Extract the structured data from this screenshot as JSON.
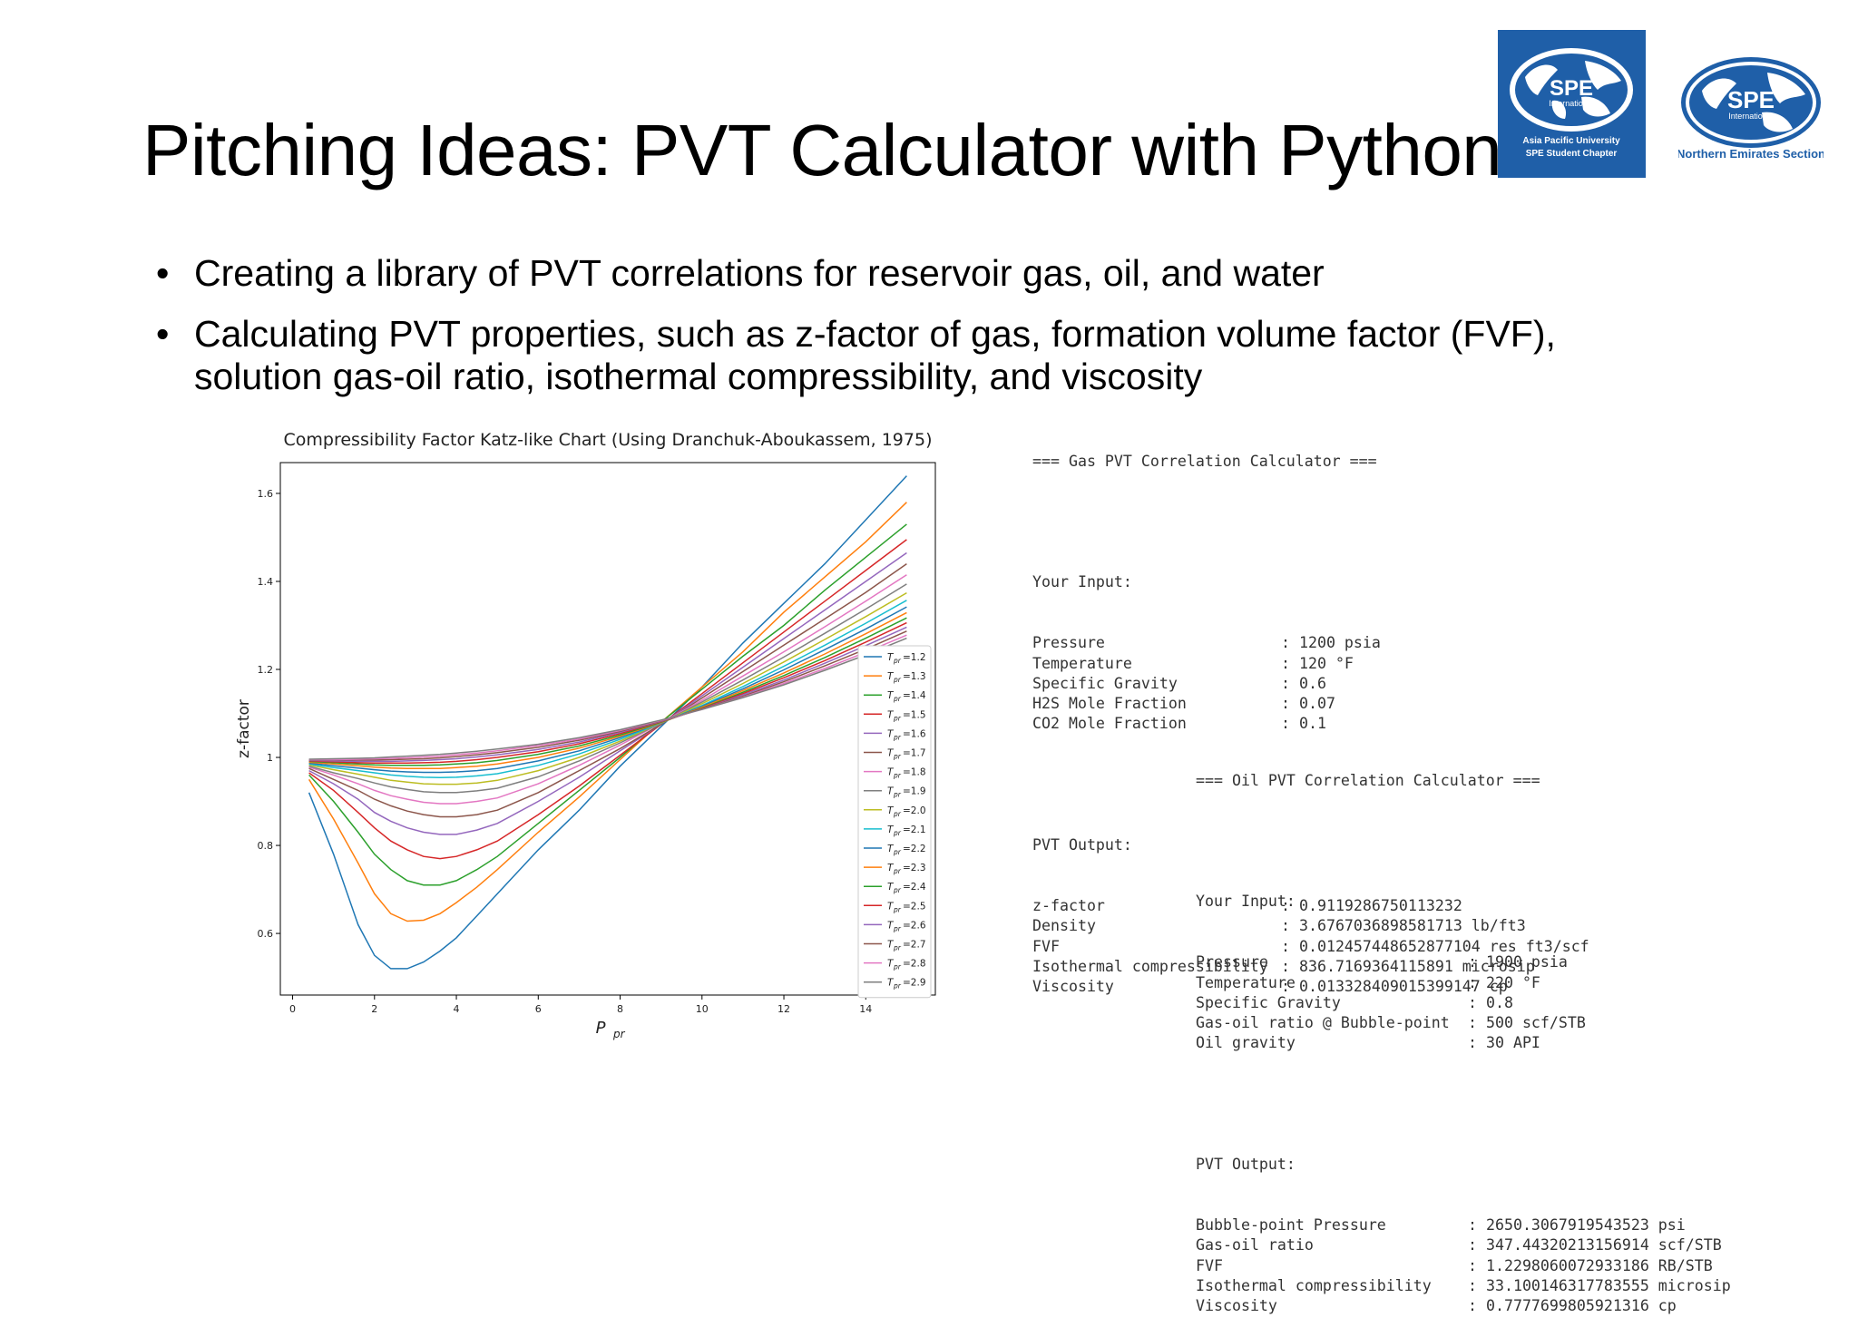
{
  "slide": {
    "title": "Pitching Ideas: PVT Calculator with Python",
    "bullets": [
      {
        "text": "Creating a library of PVT correlations for reservoir gas, oil, and water"
      },
      {
        "text": "Calculating PVT properties, such as z-factor of gas, formation volume factor (FVF), solution gas-oil ratio, isothermal compressibility, and viscosity"
      }
    ],
    "bullet_glyph": "•"
  },
  "logos": {
    "left": {
      "name": "SPE",
      "sub1": "International",
      "line1": "Asia Pacific University",
      "line2": "SPE Student Chapter",
      "bg": "#1f5fa8"
    },
    "right": {
      "name": "SPE",
      "sub1": "International",
      "caption": "Northern Emirates Section",
      "color": "#1f5fa8"
    }
  },
  "chart_data": {
    "type": "line",
    "title": "Compressibility Factor Katz-like Chart (Using Dranchuk-Aboukassem, 1975)",
    "xlabel_main": "P",
    "xlabel_sub": "pr",
    "ylabel": "z-factor",
    "xlim": [
      -0.3,
      15.7
    ],
    "ylim": [
      0.46,
      1.67
    ],
    "xticks": [
      0,
      2,
      4,
      6,
      8,
      10,
      12,
      14
    ],
    "yticks": [
      0.6,
      0.8,
      1.0,
      1.2,
      1.4,
      1.6
    ],
    "x": [
      0.4,
      1.0,
      1.6,
      2.0,
      2.4,
      2.8,
      3.2,
      3.6,
      4.0,
      4.5,
      5.0,
      6.0,
      7.0,
      8.0,
      9.0,
      10.0,
      11.0,
      12.0,
      13.0,
      14.0,
      15.0
    ],
    "legend_position": "lower-right",
    "series": [
      {
        "name": "T",
        "sub": "pr",
        "label": "=1.2",
        "color": "#1f77b4",
        "values": [
          0.92,
          0.78,
          0.62,
          0.55,
          0.52,
          0.52,
          0.535,
          0.56,
          0.59,
          0.64,
          0.69,
          0.79,
          0.88,
          0.98,
          1.07,
          1.16,
          1.26,
          1.35,
          1.44,
          1.54,
          1.64
        ]
      },
      {
        "name": "T",
        "sub": "pr",
        "label": "=1.3",
        "color": "#ff7f0e",
        "values": [
          0.95,
          0.86,
          0.76,
          0.69,
          0.645,
          0.628,
          0.63,
          0.645,
          0.67,
          0.705,
          0.745,
          0.83,
          0.91,
          0.995,
          1.08,
          1.16,
          1.24,
          1.33,
          1.41,
          1.49,
          1.58
        ]
      },
      {
        "name": "T",
        "sub": "pr",
        "label": "=1.4",
        "color": "#2ca02c",
        "values": [
          0.96,
          0.9,
          0.83,
          0.78,
          0.745,
          0.72,
          0.71,
          0.71,
          0.72,
          0.745,
          0.775,
          0.85,
          0.925,
          1.0,
          1.08,
          1.155,
          1.23,
          1.3,
          1.38,
          1.455,
          1.53
        ]
      },
      {
        "name": "T",
        "sub": "pr",
        "label": "=1.5",
        "color": "#d62728",
        "values": [
          0.965,
          0.925,
          0.875,
          0.84,
          0.81,
          0.79,
          0.775,
          0.77,
          0.775,
          0.79,
          0.81,
          0.87,
          0.935,
          1.005,
          1.075,
          1.145,
          1.215,
          1.285,
          1.355,
          1.425,
          1.495
        ]
      },
      {
        "name": "T",
        "sub": "pr",
        "label": "=1.6",
        "color": "#9467bd",
        "values": [
          0.97,
          0.94,
          0.905,
          0.875,
          0.855,
          0.84,
          0.83,
          0.825,
          0.825,
          0.835,
          0.85,
          0.9,
          0.955,
          1.015,
          1.075,
          1.14,
          1.205,
          1.27,
          1.335,
          1.4,
          1.465
        ]
      },
      {
        "name": "T",
        "sub": "pr",
        "label": "=1.7",
        "color": "#8c564b",
        "values": [
          0.975,
          0.95,
          0.925,
          0.905,
          0.89,
          0.878,
          0.87,
          0.865,
          0.865,
          0.87,
          0.88,
          0.92,
          0.97,
          1.02,
          1.075,
          1.135,
          1.195,
          1.255,
          1.315,
          1.375,
          1.44
        ]
      },
      {
        "name": "T",
        "sub": "pr",
        "label": "=1.8",
        "color": "#e377c2",
        "values": [
          0.978,
          0.96,
          0.94,
          0.925,
          0.913,
          0.905,
          0.898,
          0.895,
          0.895,
          0.9,
          0.908,
          0.94,
          0.982,
          1.028,
          1.078,
          1.13,
          1.185,
          1.24,
          1.297,
          1.355,
          1.415
        ]
      },
      {
        "name": "T",
        "sub": "pr",
        "label": "=1.9",
        "color": "#7f7f7f",
        "values": [
          0.98,
          0.965,
          0.952,
          0.942,
          0.933,
          0.927,
          0.922,
          0.92,
          0.92,
          0.924,
          0.93,
          0.956,
          0.992,
          1.033,
          1.078,
          1.126,
          1.176,
          1.228,
          1.282,
          1.337,
          1.394
        ]
      },
      {
        "name": "T",
        "sub": "pr",
        "label": "=2.0",
        "color": "#bcbd22",
        "values": [
          0.983,
          0.972,
          0.962,
          0.955,
          0.948,
          0.944,
          0.94,
          0.939,
          0.939,
          0.942,
          0.948,
          0.97,
          1.0,
          1.037,
          1.078,
          1.122,
          1.168,
          1.217,
          1.268,
          1.32,
          1.374
        ]
      },
      {
        "name": "T",
        "sub": "pr",
        "label": "=2.1",
        "color": "#17becf",
        "values": [
          0.985,
          0.977,
          0.97,
          0.965,
          0.96,
          0.957,
          0.955,
          0.954,
          0.955,
          0.958,
          0.963,
          0.982,
          1.008,
          1.041,
          1.078,
          1.118,
          1.161,
          1.207,
          1.255,
          1.305,
          1.357
        ]
      },
      {
        "name": "T",
        "sub": "pr",
        "label": "=2.2",
        "color": "#1f77b4",
        "values": [
          0.987,
          0.981,
          0.976,
          0.972,
          0.969,
          0.967,
          0.966,
          0.966,
          0.967,
          0.97,
          0.975,
          0.992,
          1.015,
          1.045,
          1.079,
          1.116,
          1.156,
          1.199,
          1.245,
          1.292,
          1.342
        ]
      },
      {
        "name": "T",
        "sub": "pr",
        "label": "=2.3",
        "color": "#ff7f0e",
        "values": [
          0.989,
          0.985,
          0.981,
          0.978,
          0.976,
          0.975,
          0.975,
          0.975,
          0.977,
          0.98,
          0.985,
          1.0,
          1.021,
          1.048,
          1.079,
          1.114,
          1.152,
          1.192,
          1.235,
          1.281,
          1.329
        ]
      },
      {
        "name": "T",
        "sub": "pr",
        "label": "=2.4",
        "color": "#2ca02c",
        "values": [
          0.991,
          0.988,
          0.985,
          0.983,
          0.982,
          0.982,
          0.982,
          0.983,
          0.985,
          0.988,
          0.993,
          1.007,
          1.026,
          1.051,
          1.08,
          1.112,
          1.148,
          1.186,
          1.227,
          1.271,
          1.317
        ]
      },
      {
        "name": "T",
        "sub": "pr",
        "label": "=2.5",
        "color": "#d62728",
        "values": [
          0.992,
          0.99,
          0.988,
          0.987,
          0.987,
          0.987,
          0.988,
          0.989,
          0.991,
          0.995,
          1.0,
          1.013,
          1.031,
          1.054,
          1.081,
          1.111,
          1.145,
          1.181,
          1.22,
          1.262,
          1.306
        ]
      },
      {
        "name": "T",
        "sub": "pr",
        "label": "=2.6",
        "color": "#9467bd",
        "values": [
          0.993,
          0.992,
          0.991,
          0.991,
          0.991,
          0.992,
          0.993,
          0.995,
          0.997,
          1.001,
          1.006,
          1.018,
          1.035,
          1.057,
          1.082,
          1.11,
          1.142,
          1.176,
          1.214,
          1.254,
          1.296
        ]
      },
      {
        "name": "T",
        "sub": "pr",
        "label": "=2.7",
        "color": "#8c564b",
        "values": [
          0.994,
          0.994,
          0.994,
          0.994,
          0.995,
          0.996,
          0.997,
          0.999,
          1.002,
          1.006,
          1.011,
          1.023,
          1.039,
          1.059,
          1.083,
          1.11,
          1.139,
          1.172,
          1.208,
          1.246,
          1.287
        ]
      },
      {
        "name": "T",
        "sub": "pr",
        "label": "=2.8",
        "color": "#e377c2",
        "values": [
          0.995,
          0.995,
          0.996,
          0.997,
          0.998,
          0.999,
          1.001,
          1.003,
          1.006,
          1.01,
          1.015,
          1.027,
          1.042,
          1.061,
          1.084,
          1.109,
          1.137,
          1.168,
          1.202,
          1.239,
          1.278
        ]
      },
      {
        "name": "T",
        "sub": "pr",
        "label": "=2.9",
        "color": "#7f7f7f",
        "values": [
          0.996,
          0.997,
          0.998,
          0.999,
          1.001,
          1.003,
          1.005,
          1.007,
          1.01,
          1.014,
          1.019,
          1.03,
          1.045,
          1.063,
          1.085,
          1.109,
          1.136,
          1.165,
          1.198,
          1.233,
          1.271
        ]
      }
    ]
  },
  "gas_console": {
    "header": "=== Gas PVT Correlation Calculator ===",
    "input_title": "Your Input:",
    "inputs": [
      {
        "k": "Pressure",
        "v": ": 1200 psia"
      },
      {
        "k": "Temperature",
        "v": ": 120 °F"
      },
      {
        "k": "Specific Gravity",
        "v": ": 0.6"
      },
      {
        "k": "H2S Mole Fraction",
        "v": ": 0.07"
      },
      {
        "k": "CO2 Mole Fraction",
        "v": ": 0.1"
      }
    ],
    "output_title": "PVT Output:",
    "outputs": [
      {
        "k": "z-factor",
        "v": ": 0.9119286750113232"
      },
      {
        "k": "Density",
        "v": ": 3.6767036898581713 lb/ft3"
      },
      {
        "k": "FVF",
        "v": ": 0.012457448652877104 res ft3/scf"
      },
      {
        "k": "Isothermal compressibility",
        "v": ": 836.7169364115891 microsip"
      },
      {
        "k": "Viscosity",
        "v": ": 0.013328409015399147 cp"
      }
    ]
  },
  "oil_console": {
    "header": "=== Oil PVT Correlation Calculator ===",
    "input_title": "Your Input:",
    "inputs": [
      {
        "k": "Pressure",
        "v": ": 1900 psia"
      },
      {
        "k": "Temperature",
        "v": ": 220 °F"
      },
      {
        "k": "Specific Gravity",
        "v": ": 0.8"
      },
      {
        "k": "Gas-oil ratio @ Bubble-point",
        "v": ": 500 scf/STB"
      },
      {
        "k": "Oil gravity",
        "v": ": 30 API"
      }
    ],
    "output_title": "PVT Output:",
    "outputs": [
      {
        "k": "Bubble-point Pressure",
        "v": ": 2650.3067919543523 psi"
      },
      {
        "k": "Gas-oil ratio",
        "v": ": 347.44320213156914 scf/STB"
      },
      {
        "k": "FVF",
        "v": ": 1.2298060072933186 RB/STB"
      },
      {
        "k": "Isothermal compressibility",
        "v": ": 33.100146317783555 microsip"
      },
      {
        "k": "Viscosity",
        "v": ": 0.7777699805921316 cp"
      }
    ]
  }
}
